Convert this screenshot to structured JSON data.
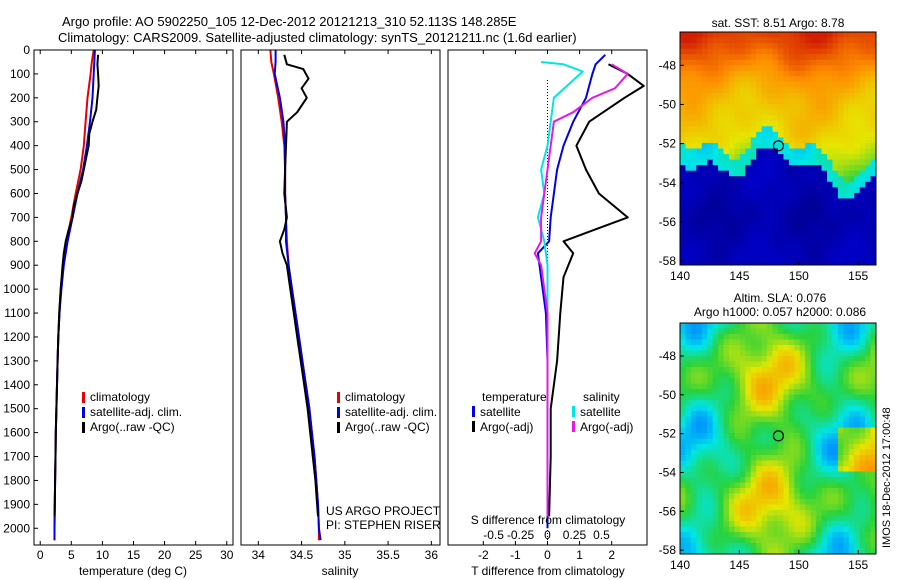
{
  "header": {
    "line1": "Argo profile: AO 5902250_105 12-Dec-2012 20121213_310 52.113S 148.285E",
    "line2": "Climatology: CARS2009. Satellite-adjusted climatology: synTS_20121211.nc (1.6d earlier)"
  },
  "colors": {
    "red": "#e60000",
    "blue": "#0000e6",
    "black": "#000000",
    "cyan": "#00e5e5",
    "magenta": "#e619e6"
  },
  "chart_data": [
    {
      "type": "line",
      "id": "temperature",
      "xlabel": "temperature (deg C)",
      "ylabel": "",
      "xlim": [
        -1,
        31
      ],
      "ylim": [
        2070,
        0
      ],
      "xticks": [
        0,
        5,
        10,
        15,
        20,
        25,
        30
      ],
      "yticks": [
        0,
        100,
        200,
        300,
        400,
        500,
        600,
        700,
        800,
        900,
        1000,
        1100,
        1200,
        1300,
        1400,
        1500,
        1600,
        1700,
        1800,
        1900,
        2000
      ],
      "legend": [
        "climatology",
        "satellite-adj. clim.",
        "Argo(..raw -QC)"
      ],
      "series": [
        {
          "name": "climatology",
          "color": "red",
          "points": [
            [
              8.6,
              0
            ],
            [
              8.3,
              50
            ],
            [
              8.1,
              100
            ],
            [
              7.6,
              200
            ],
            [
              7.3,
              300
            ],
            [
              7.0,
              400
            ],
            [
              6.5,
              500
            ],
            [
              5.7,
              600
            ],
            [
              5.0,
              700
            ],
            [
              4.2,
              800
            ],
            [
              3.7,
              900
            ],
            [
              3.3,
              1000
            ],
            [
              3.1,
              1100
            ],
            [
              2.9,
              1200
            ],
            [
              2.8,
              1300
            ],
            [
              2.7,
              1400
            ],
            [
              2.6,
              1500
            ],
            [
              2.5,
              1600
            ],
            [
              2.45,
              1700
            ],
            [
              2.4,
              1800
            ],
            [
              2.35,
              1900
            ],
            [
              2.3,
              2000
            ],
            [
              2.3,
              2050
            ]
          ]
        },
        {
          "name": "satellite-adj. clim.",
          "color": "blue",
          "points": [
            [
              8.8,
              0
            ],
            [
              8.7,
              50
            ],
            [
              8.6,
              100
            ],
            [
              8.4,
              200
            ],
            [
              8.0,
              300
            ],
            [
              7.5,
              400
            ],
            [
              6.9,
              500
            ],
            [
              6.0,
              600
            ],
            [
              5.2,
              700
            ],
            [
              4.4,
              800
            ],
            [
              3.8,
              900
            ],
            [
              3.4,
              1000
            ],
            [
              3.1,
              1100
            ],
            [
              2.9,
              1200
            ],
            [
              2.8,
              1300
            ],
            [
              2.7,
              1400
            ],
            [
              2.6,
              1500
            ],
            [
              2.5,
              1600
            ],
            [
              2.45,
              1700
            ],
            [
              2.4,
              1800
            ],
            [
              2.35,
              1900
            ],
            [
              2.3,
              2000
            ],
            [
              2.3,
              2050
            ]
          ]
        },
        {
          "name": "Argo(..raw -QC)",
          "color": "black",
          "points": [
            [
              9.3,
              20
            ],
            [
              9.2,
              60
            ],
            [
              9.3,
              100
            ],
            [
              9.4,
              150
            ],
            [
              9.2,
              200
            ],
            [
              9.0,
              250
            ],
            [
              8.4,
              300
            ],
            [
              7.9,
              350
            ],
            [
              7.8,
              400
            ],
            [
              7.4,
              450
            ],
            [
              7.0,
              500
            ],
            [
              6.6,
              550
            ],
            [
              6.0,
              600
            ],
            [
              5.4,
              650
            ],
            [
              5.2,
              700
            ],
            [
              4.6,
              750
            ],
            [
              4.1,
              800
            ],
            [
              3.8,
              850
            ],
            [
              3.6,
              900
            ],
            [
              3.3,
              1000
            ],
            [
              3.05,
              1100
            ],
            [
              2.9,
              1200
            ],
            [
              2.8,
              1300
            ],
            [
              2.7,
              1400
            ],
            [
              2.6,
              1500
            ],
            [
              2.5,
              1600
            ],
            [
              2.45,
              1700
            ],
            [
              2.4,
              1800
            ],
            [
              2.35,
              1900
            ],
            [
              2.3,
              1950
            ]
          ]
        }
      ]
    },
    {
      "type": "line",
      "id": "salinity",
      "xlabel": "salinity",
      "ylabel": "",
      "xlim": [
        33.8,
        36.1
      ],
      "ylim": [
        2070,
        0
      ],
      "xticks": [
        34,
        34.5,
        35,
        35.5,
        36
      ],
      "legend": [
        "climatology",
        "satellite-adj. clim.",
        "Argo(..raw -QC)"
      ],
      "annotations": [
        "US ARGO PROJECT",
        "PI: STEPHEN RISER"
      ],
      "series": [
        {
          "name": "climatology",
          "color": "red",
          "points": [
            [
              34.14,
              0
            ],
            [
              34.15,
              50
            ],
            [
              34.18,
              100
            ],
            [
              34.23,
              200
            ],
            [
              34.27,
              300
            ],
            [
              34.3,
              400
            ],
            [
              34.31,
              500
            ],
            [
              34.31,
              600
            ],
            [
              34.32,
              700
            ],
            [
              34.33,
              800
            ],
            [
              34.35,
              900
            ],
            [
              34.39,
              1000
            ],
            [
              34.43,
              1100
            ],
            [
              34.47,
              1200
            ],
            [
              34.51,
              1300
            ],
            [
              34.55,
              1400
            ],
            [
              34.59,
              1500
            ],
            [
              34.62,
              1600
            ],
            [
              34.65,
              1700
            ],
            [
              34.67,
              1800
            ],
            [
              34.69,
              1900
            ],
            [
              34.7,
              2000
            ],
            [
              34.7,
              2050
            ]
          ]
        },
        {
          "name": "satellite-adj. clim.",
          "color": "blue",
          "points": [
            [
              34.2,
              0
            ],
            [
              34.2,
              50
            ],
            [
              34.19,
              100
            ],
            [
              34.25,
              200
            ],
            [
              34.29,
              300
            ],
            [
              34.31,
              400
            ],
            [
              34.31,
              500
            ],
            [
              34.31,
              600
            ],
            [
              34.32,
              700
            ],
            [
              34.32,
              800
            ],
            [
              34.35,
              900
            ],
            [
              34.39,
              1000
            ],
            [
              34.43,
              1100
            ],
            [
              34.47,
              1200
            ],
            [
              34.51,
              1300
            ],
            [
              34.55,
              1400
            ],
            [
              34.59,
              1500
            ],
            [
              34.62,
              1600
            ],
            [
              34.65,
              1700
            ],
            [
              34.67,
              1800
            ],
            [
              34.69,
              1900
            ],
            [
              34.7,
              2000
            ],
            [
              34.72,
              2050
            ]
          ]
        },
        {
          "name": "Argo(..raw -QC)",
          "color": "black",
          "points": [
            [
              34.3,
              20
            ],
            [
              34.33,
              60
            ],
            [
              34.52,
              80
            ],
            [
              34.58,
              120
            ],
            [
              34.5,
              160
            ],
            [
              34.56,
              200
            ],
            [
              34.45,
              260
            ],
            [
              34.33,
              300
            ],
            [
              34.32,
              400
            ],
            [
              34.31,
              500
            ],
            [
              34.3,
              600
            ],
            [
              34.33,
              700
            ],
            [
              34.3,
              750
            ],
            [
              34.25,
              800
            ],
            [
              34.28,
              850
            ],
            [
              34.33,
              900
            ],
            [
              34.37,
              1000
            ],
            [
              34.41,
              1100
            ],
            [
              34.45,
              1200
            ],
            [
              34.49,
              1300
            ],
            [
              34.53,
              1400
            ],
            [
              34.57,
              1500
            ],
            [
              34.6,
              1600
            ],
            [
              34.63,
              1700
            ],
            [
              34.66,
              1800
            ],
            [
              34.68,
              1900
            ],
            [
              34.69,
              1950
            ]
          ]
        }
      ]
    },
    {
      "type": "line",
      "id": "difference",
      "xlabel": "T difference from climatology",
      "xlabel_top": "S difference from climatology",
      "ylabel": "",
      "xlim": [
        -3.1,
        3.1
      ],
      "ylim": [
        2070,
        0
      ],
      "xticks": [
        -2,
        -1,
        0,
        1,
        2
      ],
      "xticks_s_labels": [
        "-0.5",
        "-0.25",
        "0",
        "0.25",
        "0.5"
      ],
      "legend_titles": [
        "temperature",
        "salinity"
      ],
      "legend": [
        "satellite",
        "Argo(-adj)",
        "satellite",
        "Argo(-adj)"
      ],
      "series": [
        {
          "name": "temperature satellite",
          "color": "blue",
          "points": [
            [
              1.8,
              20
            ],
            [
              1.5,
              60
            ],
            [
              1.4,
              100
            ],
            [
              1.2,
              200
            ],
            [
              0.8,
              300
            ],
            [
              0.5,
              400
            ],
            [
              0.3,
              500
            ],
            [
              0.2,
              600
            ],
            [
              0.1,
              700
            ],
            [
              0.05,
              800
            ],
            [
              -0.3,
              850
            ],
            [
              -0.2,
              950
            ],
            [
              -0.05,
              1100
            ],
            [
              0,
              1300
            ],
            [
              0,
              1500
            ],
            [
              0,
              1700
            ],
            [
              0,
              1900
            ],
            [
              0,
              2000
            ]
          ]
        },
        {
          "name": "temperature Argo(-adj)",
          "color": "black",
          "points": [
            [
              1.9,
              60
            ],
            [
              2.5,
              100
            ],
            [
              3.0,
              150
            ],
            [
              2.4,
              200
            ],
            [
              1.3,
              300
            ],
            [
              0.9,
              400
            ],
            [
              1.2,
              500
            ],
            [
              1.6,
              600
            ],
            [
              2.5,
              700
            ],
            [
              1.5,
              750
            ],
            [
              0.5,
              800
            ],
            [
              0.8,
              850
            ],
            [
              0.5,
              950
            ],
            [
              0.4,
              1100
            ],
            [
              0.3,
              1300
            ],
            [
              0.1,
              1500
            ],
            [
              0.1,
              1700
            ],
            [
              0.05,
              1950
            ]
          ]
        },
        {
          "name": "salinity satellite",
          "color": "cyan",
          "points": [
            [
              -0.2,
              50
            ],
            [
              0.5,
              60
            ],
            [
              1.1,
              90
            ],
            [
              0.2,
              200
            ],
            [
              0.1,
              300
            ],
            [
              0.0,
              400
            ],
            [
              -0.2,
              500
            ],
            [
              -0.1,
              600
            ],
            [
              -0.3,
              700
            ],
            [
              -0.1,
              800
            ],
            [
              0,
              900
            ],
            [
              0,
              1100
            ],
            [
              0,
              1400
            ],
            [
              0,
              1700
            ],
            [
              0,
              1950
            ]
          ]
        },
        {
          "name": "salinity Argo(-adj)",
          "color": "magenta",
          "points": [
            [
              2.0,
              60
            ],
            [
              2.5,
              100
            ],
            [
              2.1,
              160
            ],
            [
              1.4,
              200
            ],
            [
              0.8,
              260
            ],
            [
              0.2,
              300
            ],
            [
              0.1,
              400
            ],
            [
              0.0,
              500
            ],
            [
              -0.1,
              600
            ],
            [
              -0.2,
              700
            ],
            [
              -0.2,
              800
            ],
            [
              -0.4,
              850
            ],
            [
              -0.2,
              900
            ],
            [
              -0.1,
              1000
            ],
            [
              0,
              1100
            ],
            [
              0,
              1500
            ],
            [
              0,
              1700
            ],
            [
              0,
              1950
            ]
          ]
        }
      ]
    },
    {
      "type": "heatmap",
      "id": "sst-map",
      "title": "sat. SST: 8.51  Argo: 8.78",
      "xlim": [
        140,
        156.5
      ],
      "ylim": [
        -58.2,
        -46.3
      ],
      "xticks": [
        140,
        145,
        150,
        155
      ],
      "yticks": [
        -48,
        -50,
        -52,
        -54,
        -56,
        -58
      ],
      "marker": [
        148.285,
        -52.113
      ]
    },
    {
      "type": "heatmap",
      "id": "sla-map",
      "title_line1": "Altim. SLA: 0.076",
      "title_line2": "Argo h1000: 0.057 h2000: 0.086",
      "xlim": [
        140,
        156.5
      ],
      "ylim": [
        -58.2,
        -46.3
      ],
      "xticks": [
        140,
        145,
        150,
        155
      ],
      "yticks": [
        -48,
        -50,
        -52,
        -54,
        -56,
        -58
      ],
      "marker": [
        148.285,
        -52.113
      ]
    }
  ],
  "footer": {
    "imos_stamp": "IMOS 18-Dec-2012 17:00:48"
  }
}
